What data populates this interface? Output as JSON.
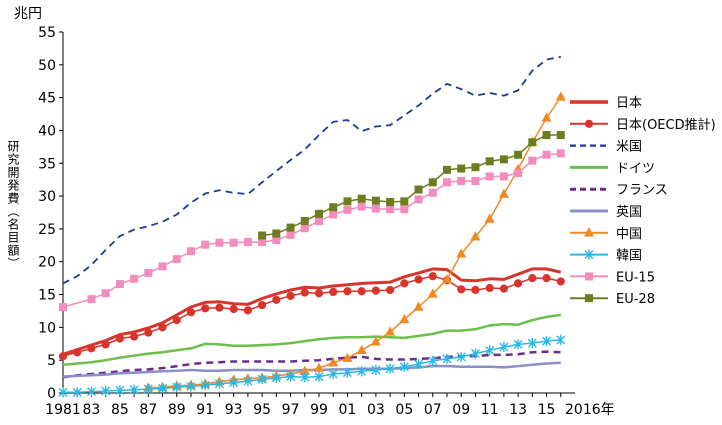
{
  "chart_data": {
    "type": "line",
    "unit_label": "兆円",
    "ylabel": "研究開発費（名目額）",
    "ylim": [
      0,
      55
    ],
    "yticks": [
      0,
      5,
      10,
      15,
      20,
      25,
      30,
      35,
      40,
      45,
      50,
      55
    ],
    "xlim": [
      1981,
      2017
    ],
    "xtick_labels": [
      "1981",
      "83",
      "85",
      "87",
      "89",
      "91",
      "93",
      "95",
      "97",
      "99",
      "01",
      "03",
      "05",
      "07",
      "09",
      "11",
      "13",
      "15",
      "2016年"
    ],
    "grid": false,
    "legend_position": "right",
    "series": [
      {
        "name": "日本",
        "color": "#d9342b",
        "dash": "solid",
        "marker": "none",
        "width": 3,
        "x": [
          1981,
          1982,
          1983,
          1984,
          1985,
          1986,
          1987,
          1988,
          1989,
          1990,
          1991,
          1992,
          1993,
          1994,
          1995,
          1996,
          1997,
          1998,
          1999,
          2000,
          2001,
          2002,
          2003,
          2004,
          2005,
          2006,
          2007,
          2008,
          2009,
          2010,
          2011,
          2012,
          2013,
          2014,
          2015,
          2016
        ],
        "y": [
          5.9,
          6.6,
          7.3,
          8.0,
          8.9,
          9.3,
          9.9,
          10.7,
          11.9,
          13.1,
          13.8,
          13.9,
          13.6,
          13.5,
          14.4,
          15.1,
          15.7,
          16.1,
          16.0,
          16.3,
          16.5,
          16.7,
          16.8,
          16.9,
          17.7,
          18.3,
          18.9,
          18.8,
          17.2,
          17.1,
          17.4,
          17.3,
          18.1,
          18.9,
          18.9,
          18.4
        ]
      },
      {
        "name": "日本(OECD推計)",
        "color": "#d9342b",
        "dash": "solid",
        "marker": "circle",
        "width": 1.5,
        "x": [
          1981,
          1982,
          1983,
          1984,
          1985,
          1986,
          1987,
          1988,
          1989,
          1990,
          1991,
          1992,
          1993,
          1994,
          1995,
          1996,
          1997,
          1998,
          1999,
          2000,
          2001,
          2002,
          2003,
          2004,
          2005,
          2006,
          2007,
          2008,
          2009,
          2010,
          2011,
          2012,
          2013,
          2014,
          2015,
          2016
        ],
        "y": [
          5.6,
          6.2,
          6.8,
          7.4,
          8.3,
          8.6,
          9.2,
          10.0,
          11.1,
          12.3,
          12.9,
          13.0,
          12.8,
          12.6,
          13.4,
          14.2,
          14.8,
          15.3,
          15.2,
          15.4,
          15.5,
          15.5,
          15.6,
          15.7,
          16.7,
          17.3,
          17.8,
          17.2,
          15.8,
          15.7,
          16.0,
          15.9,
          16.7,
          17.5,
          17.5,
          17.0
        ]
      },
      {
        "name": "米国",
        "color": "#1f3a93",
        "dash": "dash",
        "marker": "none",
        "width": 1.8,
        "x": [
          1981,
          1982,
          1983,
          1984,
          1985,
          1986,
          1987,
          1988,
          1989,
          1990,
          1991,
          1992,
          1993,
          1994,
          1995,
          1996,
          1997,
          1998,
          1999,
          2000,
          2001,
          2002,
          2003,
          2004,
          2005,
          2006,
          2007,
          2008,
          2009,
          2010,
          2011,
          2012,
          2013,
          2014,
          2015,
          2016
        ],
        "y": [
          16.7,
          17.8,
          19.5,
          21.8,
          23.9,
          24.9,
          25.4,
          26.1,
          27.2,
          29.0,
          30.4,
          30.9,
          30.5,
          30.3,
          32.1,
          33.8,
          35.5,
          37.1,
          39.3,
          41.3,
          41.6,
          39.9,
          40.6,
          40.8,
          42.3,
          43.8,
          45.6,
          47.1,
          46.3,
          45.3,
          45.7,
          45.3,
          46.1,
          49.1,
          50.8,
          51.2
        ]
      },
      {
        "name": "ドイツ",
        "color": "#6cbf4a",
        "dash": "solid",
        "marker": "none",
        "width": 2.5,
        "x": [
          1981,
          1982,
          1983,
          1984,
          1985,
          1986,
          1987,
          1988,
          1989,
          1990,
          1991,
          1992,
          1993,
          1994,
          1995,
          1996,
          1997,
          1998,
          1999,
          2000,
          2001,
          2002,
          2003,
          2004,
          2005,
          2006,
          2007,
          2008,
          2009,
          2010,
          2011,
          2012,
          2013,
          2014,
          2015,
          2016
        ],
        "y": [
          4.3,
          4.5,
          4.7,
          5.0,
          5.4,
          5.7,
          6.0,
          6.2,
          6.5,
          6.8,
          7.5,
          7.4,
          7.2,
          7.2,
          7.3,
          7.4,
          7.6,
          7.9,
          8.2,
          8.4,
          8.5,
          8.5,
          8.6,
          8.5,
          8.4,
          8.7,
          9.0,
          9.5,
          9.5,
          9.7,
          10.3,
          10.5,
          10.4,
          11.1,
          11.6,
          11.9
        ]
      },
      {
        "name": "フランス",
        "color": "#6a2e8a",
        "dash": "dash",
        "marker": "none",
        "width": 2.5,
        "x": [
          1981,
          1982,
          1983,
          1984,
          1985,
          1986,
          1987,
          1988,
          1989,
          1990,
          1991,
          1992,
          1993,
          1994,
          1995,
          1996,
          1997,
          1998,
          1999,
          2000,
          2001,
          2002,
          2003,
          2004,
          2005,
          2006,
          2007,
          2008,
          2009,
          2010,
          2011,
          2012,
          2013,
          2014,
          2015,
          2016
        ],
        "y": [
          2.4,
          2.7,
          2.9,
          3.1,
          3.3,
          3.5,
          3.6,
          3.8,
          4.1,
          4.4,
          4.6,
          4.7,
          4.8,
          4.8,
          4.8,
          4.8,
          4.8,
          4.9,
          5.0,
          5.2,
          5.4,
          5.5,
          5.2,
          5.1,
          5.1,
          5.2,
          5.3,
          5.5,
          5.6,
          5.6,
          5.8,
          5.8,
          5.9,
          6.2,
          6.3,
          6.2
        ]
      },
      {
        "name": "英国",
        "color": "#8a8fc7",
        "dash": "solid",
        "marker": "none",
        "width": 2.5,
        "x": [
          1981,
          1982,
          1983,
          1984,
          1985,
          1986,
          1987,
          1988,
          1989,
          1990,
          1991,
          1992,
          1993,
          1994,
          1995,
          1996,
          1997,
          1998,
          1999,
          2000,
          2001,
          2002,
          2003,
          2004,
          2005,
          2006,
          2007,
          2008,
          2009,
          2010,
          2011,
          2012,
          2013,
          2014,
          2015,
          2016
        ],
        "y": [
          2.5,
          2.6,
          2.7,
          2.8,
          3.0,
          3.1,
          3.2,
          3.3,
          3.4,
          3.5,
          3.4,
          3.4,
          3.5,
          3.5,
          3.5,
          3.4,
          3.4,
          3.5,
          3.5,
          3.6,
          3.6,
          3.7,
          3.7,
          3.7,
          3.8,
          3.9,
          4.1,
          4.1,
          4.0,
          4.0,
          4.0,
          3.9,
          4.1,
          4.3,
          4.5,
          4.6
        ]
      },
      {
        "name": "中国",
        "color": "#f08a24",
        "dash": "solid",
        "marker": "triangle",
        "width": 1.5,
        "x": [
          1987,
          1988,
          1989,
          1990,
          1991,
          1992,
          1993,
          1994,
          1995,
          1996,
          1997,
          1998,
          1999,
          2000,
          2001,
          2002,
          2003,
          2004,
          2005,
          2006,
          2007,
          2008,
          2009,
          2010,
          2011,
          2012,
          2013,
          2014,
          2015,
          2016
        ],
        "y": [
          0.8,
          0.9,
          1.1,
          1.2,
          1.4,
          1.7,
          2.0,
          2.2,
          2.3,
          2.6,
          2.9,
          3.3,
          3.8,
          4.6,
          5.3,
          6.5,
          7.8,
          9.3,
          11.2,
          13.1,
          15.1,
          17.3,
          21.2,
          23.8,
          26.5,
          30.3,
          34.1,
          38.2,
          41.9,
          45.1
        ]
      },
      {
        "name": "韓国",
        "color": "#29b8e6",
        "dash": "solid",
        "marker": "cross",
        "width": 1.5,
        "x": [
          1981,
          1982,
          1983,
          1984,
          1985,
          1986,
          1987,
          1988,
          1989,
          1990,
          1991,
          1992,
          1993,
          1994,
          1995,
          1996,
          1997,
          1998,
          1999,
          2000,
          2001,
          2002,
          2003,
          2004,
          2005,
          2006,
          2007,
          2008,
          2009,
          2010,
          2011,
          2012,
          2013,
          2014,
          2015,
          2016
        ],
        "y": [
          0.1,
          0.1,
          0.2,
          0.3,
          0.4,
          0.5,
          0.6,
          0.7,
          0.9,
          1.0,
          1.2,
          1.4,
          1.6,
          1.8,
          2.1,
          2.3,
          2.5,
          2.4,
          2.5,
          2.9,
          3.1,
          3.3,
          3.5,
          3.7,
          4.0,
          4.4,
          4.9,
          5.2,
          5.5,
          6.0,
          6.5,
          7.0,
          7.4,
          7.6,
          7.9,
          8.1
        ]
      },
      {
        "name": "EU-15",
        "color": "#f28cbd",
        "dash": "solid",
        "marker": "square",
        "width": 1.5,
        "x": [
          1981,
          1983,
          1984,
          1985,
          1986,
          1987,
          1988,
          1989,
          1990,
          1991,
          1992,
          1993,
          1994,
          1995,
          1996,
          1997,
          1998,
          1999,
          2000,
          2001,
          2002,
          2003,
          2004,
          2005,
          2006,
          2007,
          2008,
          2009,
          2010,
          2011,
          2012,
          2013,
          2014,
          2015,
          2016
        ],
        "y": [
          13.1,
          14.3,
          15.2,
          16.6,
          17.4,
          18.3,
          19.3,
          20.4,
          21.6,
          22.6,
          22.9,
          22.9,
          23.0,
          23.0,
          23.3,
          24.1,
          25.1,
          26.2,
          27.2,
          27.9,
          28.4,
          28.1,
          28.0,
          28.0,
          29.5,
          30.5,
          32.1,
          32.3,
          32.3,
          33.0,
          33.0,
          33.5,
          35.4,
          36.3,
          36.5
        ]
      },
      {
        "name": "EU-28",
        "color": "#6b7d1e",
        "dash": "solid",
        "marker": "square",
        "width": 1.5,
        "x": [
          1995,
          1996,
          1997,
          1998,
          1999,
          2000,
          2001,
          2002,
          2003,
          2004,
          2005,
          2006,
          2007,
          2008,
          2009,
          2010,
          2011,
          2012,
          2013,
          2014,
          2015,
          2016
        ],
        "y": [
          24.0,
          24.3,
          25.2,
          26.2,
          27.3,
          28.3,
          29.2,
          29.6,
          29.3,
          29.1,
          29.2,
          31.0,
          32.1,
          34.0,
          34.2,
          34.4,
          35.3,
          35.6,
          36.3,
          38.2,
          39.3,
          39.3
        ]
      }
    ]
  }
}
